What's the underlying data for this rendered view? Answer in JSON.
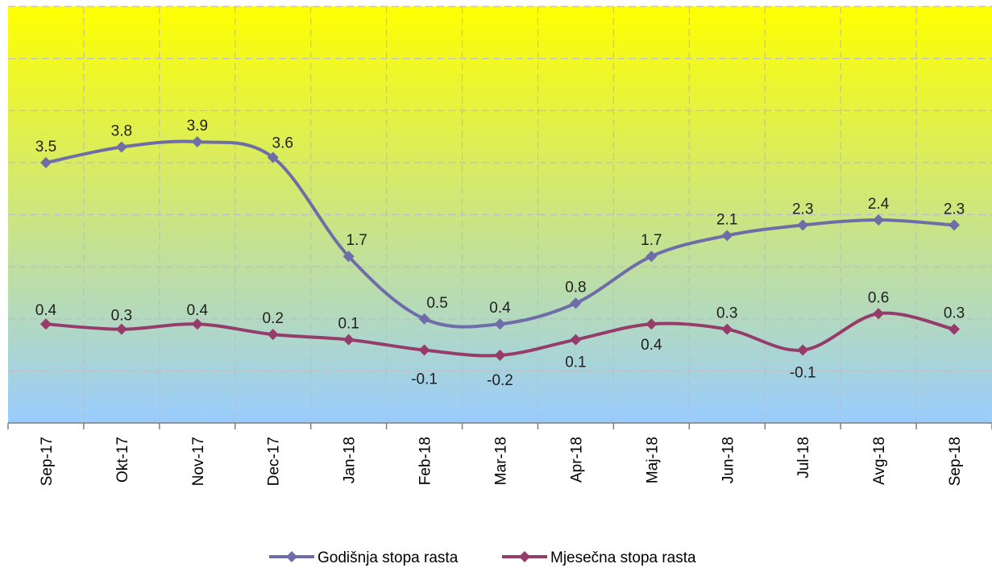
{
  "colors": {
    "plot_top": "#ffff00",
    "plot_bottom": "#99ccff",
    "grid": "#bfbfbf",
    "series_annual": "#6e6da8",
    "series_monthly": "#963c6a"
  },
  "chart_data": {
    "type": "line",
    "categories": [
      "Sep-17",
      "Okt-17",
      "Nov-17",
      "Dec-17",
      "Jan-18",
      "Feb-18",
      "Mar-18",
      "Apr-18",
      "Maj-18",
      "Jun-18",
      "Jul-18",
      "Avg-18",
      "Sep-18"
    ],
    "series": [
      {
        "name": "Godišnja stopa rasta",
        "values": [
          3.5,
          3.8,
          3.9,
          3.6,
          1.7,
          0.5,
          0.4,
          0.8,
          1.7,
          2.1,
          2.3,
          2.4,
          2.3
        ],
        "color": "#6e6da8",
        "marker": "diamond",
        "smooth": true
      },
      {
        "name": "Mjesečna stopa rasta",
        "values": [
          0.4,
          0.3,
          0.4,
          0.2,
          0.1,
          -0.1,
          -0.2,
          0.1,
          0.4,
          0.3,
          -0.1,
          0.6,
          0.3
        ],
        "color": "#963c6a",
        "marker": "diamond",
        "smooth": true
      }
    ],
    "ylim": [
      -1.5,
      6.5
    ],
    "y_grid_step": 1,
    "y_tick_labels_visible": false,
    "grid": true,
    "grid_style": "dashed",
    "legend": "bottom-center",
    "data_labels": true,
    "xlabel": "",
    "ylabel": "",
    "title": ""
  }
}
